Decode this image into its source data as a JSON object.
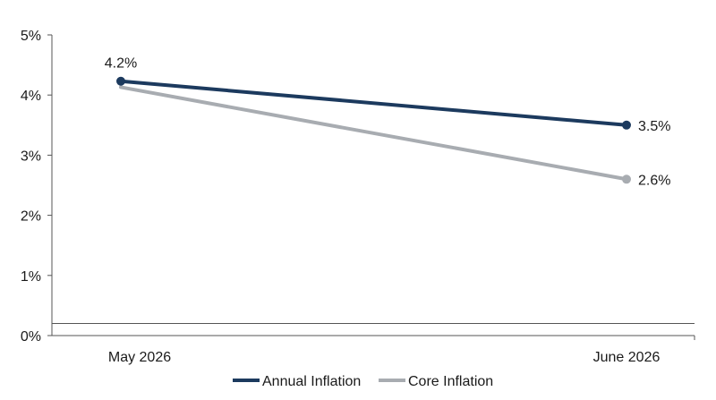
{
  "chart_data": {
    "type": "line",
    "categories": [
      "May 2026",
      "June 2026"
    ],
    "y_ticks": [
      "0%",
      "1%",
      "2%",
      "3%",
      "4%",
      "5%"
    ],
    "ylim": [
      0,
      5
    ],
    "reference_line": 0.2,
    "grid": false,
    "legend_position": "bottom",
    "series": [
      {
        "name": "Annual Inflation",
        "values": [
          4.23,
          3.5
        ],
        "labels": [
          "4.2%",
          "3.5%"
        ],
        "color": "#1c3a5e",
        "label_positions": [
          "above",
          "right"
        ]
      },
      {
        "name": "Core Inflation",
        "values": [
          4.13,
          2.6
        ],
        "labels": [
          "",
          "2.6%"
        ],
        "color": "#a8acb1",
        "label_positions": [
          "none",
          "right"
        ]
      }
    ]
  }
}
